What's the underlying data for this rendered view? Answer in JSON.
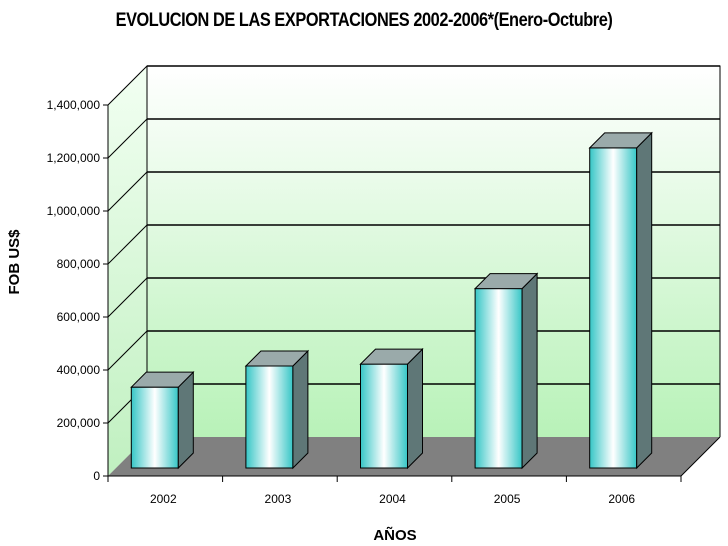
{
  "chart_data": {
    "type": "bar",
    "title": "EVOLUCION DE LAS EXPORTACIONES 2002-2006*(Enero-Octubre)",
    "xlabel": "AÑOS",
    "ylabel": "FOB US$",
    "categories": [
      "2002",
      "2003",
      "2004",
      "2005",
      "2006"
    ],
    "values": [
      305000,
      385000,
      392000,
      677000,
      1208000
    ],
    "ylim": [
      0,
      1400000
    ],
    "yticks": [
      "0",
      "200,000",
      "400,000",
      "600,000",
      "800,000",
      "1,000,000",
      "1,200,000",
      "1,400,000"
    ],
    "grid": true,
    "legend": "none",
    "colors": {
      "bar_front_edge": "#36c6c6",
      "bar_front_center": "#ffffff",
      "bar_side": "#5f7777",
      "bar_top": "#9aaaaa",
      "wall_top": "#ffffff",
      "wall_bottom": "#b8f2b8",
      "floor": "#808080"
    }
  }
}
